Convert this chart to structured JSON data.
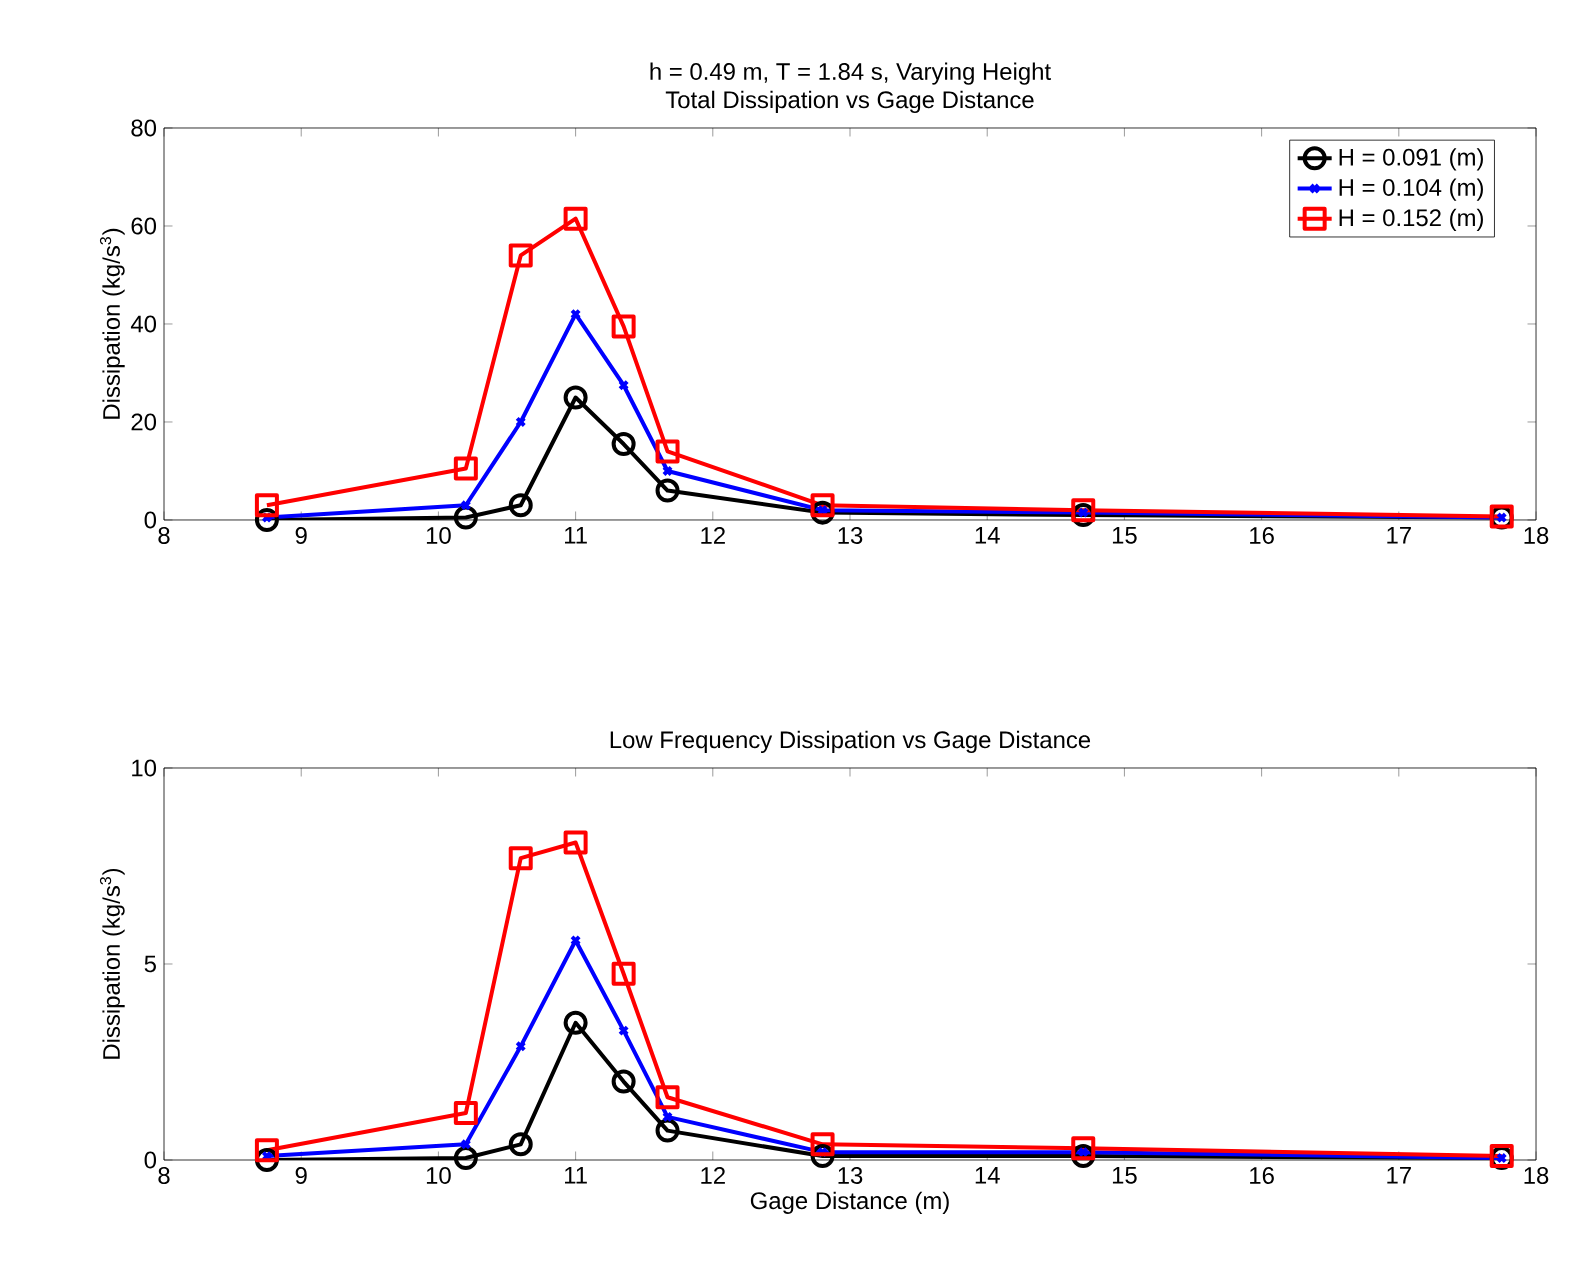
{
  "chart_data": [
    {
      "type": "line",
      "title": "Total Dissipation vs Gage Distance",
      "subtitle": "h = 0.49 m, T = 1.84 s, Varying Height",
      "ylabel": "Dissipation (kg/s$^{3}$)",
      "x": [
        8.75,
        10.2,
        10.6,
        11.0,
        11.35,
        11.67,
        12.8,
        14.7,
        17.75
      ],
      "series": [
        {
          "name": "H = 0.091 (m)",
          "color": "#000000",
          "marker": "circle",
          "values": [
            0,
            0.5,
            3,
            25,
            15.5,
            6,
            1.5,
            1,
            0.5
          ]
        },
        {
          "name": "H = 0.104 (m)",
          "color": "#0000ff",
          "marker": "cross",
          "values": [
            0.5,
            3,
            20,
            42,
            27.5,
            10,
            2,
            1.5,
            0.5
          ]
        },
        {
          "name": "H = 0.152 (m)",
          "color": "#ff0000",
          "marker": "square",
          "values": [
            3,
            10.5,
            54,
            61.5,
            39.5,
            14,
            3,
            2,
            0.7
          ]
        }
      ],
      "xlim": [
        8,
        18
      ],
      "xticks": [
        8,
        9,
        10,
        11,
        12,
        13,
        14,
        15,
        16,
        17,
        18
      ],
      "ylim": [
        0,
        80
      ],
      "yticks": [
        0,
        20,
        40,
        60,
        80
      ],
      "grid": false,
      "legend": "top right"
    },
    {
      "type": "line",
      "title": "Low Frequency Dissipation vs Gage Distance",
      "xlabel": "Gage Distance (m)",
      "ylabel": "Dissipation (kg/s$^{3}$)",
      "x": [
        8.75,
        10.2,
        10.6,
        11.0,
        11.35,
        11.67,
        12.8,
        14.7,
        17.75
      ],
      "series": [
        {
          "color": "#000000",
          "marker": "circle",
          "values": [
            0,
            0.05,
            0.4,
            3.5,
            2.0,
            0.75,
            0.1,
            0.1,
            0.05
          ]
        },
        {
          "color": "#0000ff",
          "marker": "cross",
          "values": [
            0.1,
            0.4,
            2.9,
            5.6,
            3.3,
            1.1,
            0.2,
            0.2,
            0.05
          ]
        },
        {
          "color": "#ff0000",
          "marker": "square",
          "values": [
            0.25,
            1.2,
            7.7,
            8.1,
            4.75,
            1.6,
            0.4,
            0.3,
            0.1
          ]
        }
      ],
      "xlim": [
        8,
        18
      ],
      "xticks": [
        8,
        9,
        10,
        11,
        12,
        13,
        14,
        15,
        16,
        17,
        18
      ],
      "ylim": [
        0,
        10
      ],
      "yticks": [
        0,
        5,
        10
      ],
      "grid": false,
      "legend": false
    }
  ]
}
